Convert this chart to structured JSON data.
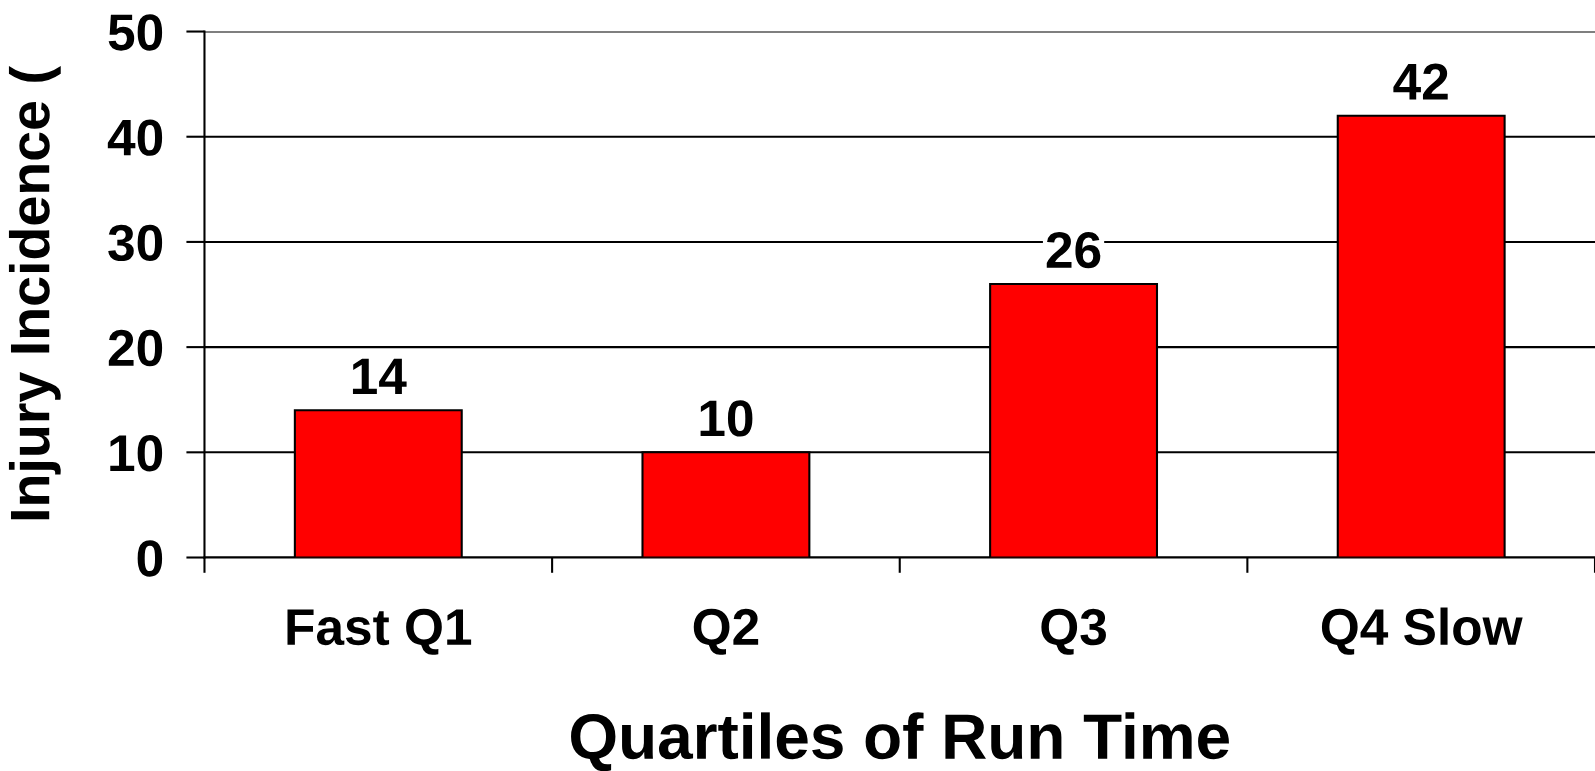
{
  "chart_data": {
    "type": "bar",
    "ylabel": "Injury Incidence (",
    "xlabel": "Quartiles of Run Time",
    "categories": [
      "Fast Q1",
      "Q2",
      "Q3",
      "Q4 Slow"
    ],
    "values": [
      14,
      10,
      26,
      42
    ],
    "color": "#ff0000",
    "ylim": [
      0,
      50
    ],
    "yticks": [
      0,
      10,
      20,
      30,
      40,
      50
    ],
    "grid": "y",
    "data_labels": true
  }
}
